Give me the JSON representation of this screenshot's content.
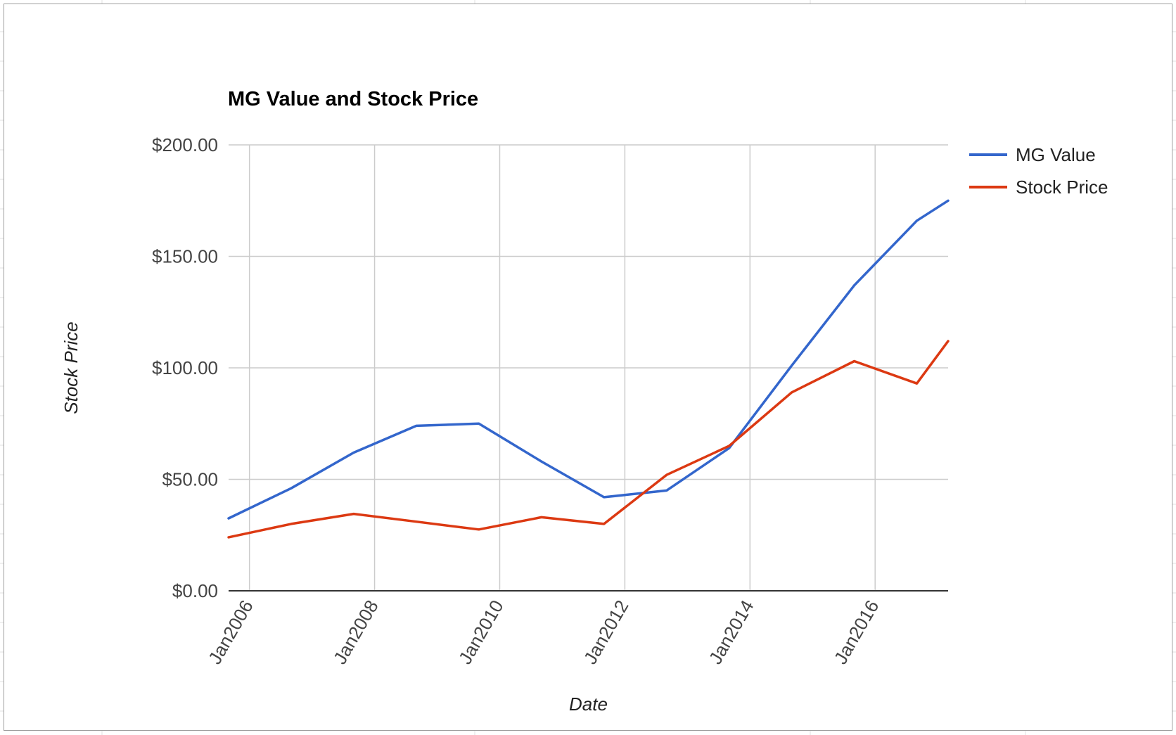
{
  "chart_data": {
    "type": "line",
    "title": "MG Value and Stock Price",
    "xlabel": "Date",
    "ylabel": "Stock Price",
    "x_tick_labels": [
      "Jan2006",
      "Jan2008",
      "Jan2010",
      "Jan2012",
      "Jan2014",
      "Jan2016"
    ],
    "y_tick_labels": [
      "$0.00",
      "$50.00",
      "$100.00",
      "$150.00",
      "$200.00"
    ],
    "ylim": [
      0,
      200
    ],
    "xlim": [
      "2005-09",
      "2017-03"
    ],
    "grid": true,
    "legend_position": "right",
    "x": [
      "2005-09",
      "2006-09",
      "2007-09",
      "2008-09",
      "2009-09",
      "2010-09",
      "2011-09",
      "2012-09",
      "2013-09",
      "2014-09",
      "2015-09",
      "2016-09",
      "2017-03"
    ],
    "series": [
      {
        "name": "MG Value",
        "color": "#3366cc",
        "values": [
          32.5,
          46,
          62,
          74,
          75,
          58,
          42,
          45,
          64,
          101,
          137,
          166,
          175
        ]
      },
      {
        "name": "Stock Price",
        "color": "#dc3912",
        "values": [
          24,
          30,
          34.5,
          31,
          27.5,
          33,
          30,
          52,
          65,
          89,
          103,
          93,
          112
        ]
      }
    ]
  }
}
